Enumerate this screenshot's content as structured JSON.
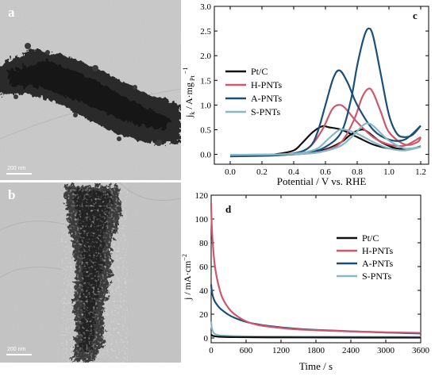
{
  "panels": {
    "a": {
      "letter": "a",
      "scale_bar": "200 nm"
    },
    "b": {
      "letter": "b",
      "scale_bar": "200 nm"
    }
  },
  "colors": {
    "pt_c": "#111111",
    "h_pnts": "#d0576b",
    "a_pnts": "#1c4f78",
    "s_pnts": "#88b8c8"
  },
  "chart_data": [
    {
      "panel": "c",
      "type": "line",
      "title": "",
      "xlabel": "Potential / V vs. RHE",
      "ylabel_main": "j",
      "ylabel_sub": "k",
      "ylabel_rest": " / A·mg",
      "ylabel_sup": "−1",
      "ylabel_supsub": "Pt",
      "xlim": [
        -0.1,
        1.25
      ],
      "ylim": [
        -0.2,
        3.0
      ],
      "xticks": [
        0.0,
        0.2,
        0.4,
        0.6,
        0.8,
        1.0,
        1.2
      ],
      "yticks": [
        0.0,
        0.5,
        1.0,
        1.5,
        2.0,
        2.5,
        3.0
      ],
      "xtick_labels": [
        "0.0",
        "0.2",
        "0.4",
        "0.6",
        "0.8",
        "1.0",
        "1.2"
      ],
      "ytick_labels": [
        "0.0",
        "0.5",
        "1.0",
        "1.5",
        "2.0",
        "2.5",
        "3.0"
      ],
      "legend_position": "middle-left",
      "series": [
        {
          "name": "Pt/C",
          "color": "#111111",
          "forward": [
            [
              0.0,
              -0.03
            ],
            [
              0.2,
              -0.02
            ],
            [
              0.4,
              0.0
            ],
            [
              0.5,
              0.03
            ],
            [
              0.6,
              0.1
            ],
            [
              0.7,
              0.25
            ],
            [
              0.75,
              0.38
            ],
            [
              0.8,
              0.48
            ],
            [
              0.84,
              0.5
            ],
            [
              0.88,
              0.42
            ],
            [
              0.95,
              0.25
            ],
            [
              1.05,
              0.12
            ],
            [
              1.15,
              0.12
            ],
            [
              1.2,
              0.16
            ]
          ],
          "backward": [
            [
              1.2,
              0.16
            ],
            [
              1.15,
              0.12
            ],
            [
              1.1,
              0.1
            ],
            [
              1.0,
              0.12
            ],
            [
              0.9,
              0.2
            ],
            [
              0.8,
              0.35
            ],
            [
              0.7,
              0.5
            ],
            [
              0.62,
              0.55
            ],
            [
              0.58,
              0.57
            ],
            [
              0.52,
              0.45
            ],
            [
              0.45,
              0.22
            ],
            [
              0.4,
              0.08
            ],
            [
              0.3,
              0.01
            ],
            [
              0.2,
              -0.02
            ],
            [
              0.0,
              -0.03
            ]
          ]
        },
        {
          "name": "H-PNTs",
          "color": "#d0576b",
          "forward": [
            [
              0.0,
              -0.02
            ],
            [
              0.3,
              -0.01
            ],
            [
              0.5,
              0.02
            ],
            [
              0.6,
              0.08
            ],
            [
              0.7,
              0.25
            ],
            [
              0.78,
              0.7
            ],
            [
              0.83,
              1.15
            ],
            [
              0.87,
              1.33
            ],
            [
              0.9,
              1.25
            ],
            [
              0.95,
              0.85
            ],
            [
              1.0,
              0.45
            ],
            [
              1.1,
              0.2
            ],
            [
              1.18,
              0.25
            ],
            [
              1.2,
              0.35
            ]
          ],
          "backward": [
            [
              1.2,
              0.35
            ],
            [
              1.1,
              0.18
            ],
            [
              1.0,
              0.2
            ],
            [
              0.9,
              0.35
            ],
            [
              0.8,
              0.65
            ],
            [
              0.72,
              0.95
            ],
            [
              0.68,
              1.0
            ],
            [
              0.64,
              0.9
            ],
            [
              0.58,
              0.5
            ],
            [
              0.5,
              0.15
            ],
            [
              0.4,
              0.02
            ],
            [
              0.2,
              -0.01
            ],
            [
              0.0,
              -0.02
            ]
          ]
        },
        {
          "name": "A-PNTs",
          "color": "#1c4f78",
          "forward": [
            [
              0.0,
              -0.04
            ],
            [
              0.3,
              -0.02
            ],
            [
              0.5,
              0.05
            ],
            [
              0.6,
              0.15
            ],
            [
              0.7,
              0.45
            ],
            [
              0.76,
              1.1
            ],
            [
              0.8,
              1.8
            ],
            [
              0.84,
              2.35
            ],
            [
              0.87,
              2.55
            ],
            [
              0.9,
              2.4
            ],
            [
              0.95,
              1.6
            ],
            [
              1.0,
              0.8
            ],
            [
              1.05,
              0.42
            ],
            [
              1.1,
              0.35
            ],
            [
              1.15,
              0.4
            ],
            [
              1.2,
              0.58
            ]
          ],
          "backward": [
            [
              1.2,
              0.58
            ],
            [
              1.1,
              0.3
            ],
            [
              1.0,
              0.3
            ],
            [
              0.9,
              0.5
            ],
            [
              0.8,
              1.0
            ],
            [
              0.74,
              1.45
            ],
            [
              0.69,
              1.7
            ],
            [
              0.65,
              1.55
            ],
            [
              0.6,
              1.0
            ],
            [
              0.55,
              0.45
            ],
            [
              0.5,
              0.15
            ],
            [
              0.4,
              0.02
            ],
            [
              0.2,
              -0.02
            ],
            [
              0.0,
              -0.04
            ]
          ]
        },
        {
          "name": "S-PNTs",
          "color": "#88b8c8",
          "forward": [
            [
              0.0,
              -0.01
            ],
            [
              0.3,
              0.0
            ],
            [
              0.5,
              0.02
            ],
            [
              0.6,
              0.07
            ],
            [
              0.7,
              0.18
            ],
            [
              0.78,
              0.4
            ],
            [
              0.84,
              0.6
            ],
            [
              0.88,
              0.62
            ],
            [
              0.92,
              0.52
            ],
            [
              1.0,
              0.28
            ],
            [
              1.1,
              0.12
            ],
            [
              1.2,
              0.15
            ]
          ],
          "backward": [
            [
              1.2,
              0.15
            ],
            [
              1.1,
              0.08
            ],
            [
              1.0,
              0.12
            ],
            [
              0.9,
              0.25
            ],
            [
              0.8,
              0.42
            ],
            [
              0.72,
              0.5
            ],
            [
              0.68,
              0.48
            ],
            [
              0.62,
              0.32
            ],
            [
              0.55,
              0.12
            ],
            [
              0.45,
              0.03
            ],
            [
              0.3,
              0.0
            ],
            [
              0.0,
              -0.01
            ]
          ]
        }
      ]
    },
    {
      "panel": "d",
      "type": "line",
      "title": "",
      "xlabel": "Time / s",
      "ylabel_main": "j / mA·cm",
      "ylabel_sup": "−2",
      "xlim": [
        0,
        3600
      ],
      "ylim": [
        -4,
        120
      ],
      "xticks": [
        0,
        600,
        1200,
        1800,
        2400,
        3000,
        3600
      ],
      "yticks": [
        0,
        20,
        40,
        60,
        80,
        100,
        120
      ],
      "xtick_labels": [
        "0",
        "600",
        "1200",
        "1800",
        "2400",
        "3000",
        "3600"
      ],
      "ytick_labels": [
        "0",
        "20",
        "40",
        "60",
        "80",
        "100",
        "120"
      ],
      "legend_position": "top-right",
      "series": [
        {
          "name": "Pt/C",
          "color": "#111111",
          "x": [
            0,
            20,
            60,
            150,
            400,
            1000,
            2000,
            3600
          ],
          "y": [
            3,
            2,
            1.5,
            1,
            0.7,
            0.5,
            0.4,
            0.3
          ]
        },
        {
          "name": "H-PNTs",
          "color": "#d0576b",
          "x": [
            0,
            10,
            30,
            60,
            100,
            150,
            200,
            300,
            400,
            600,
            800,
            1000,
            1400,
            1800,
            2400,
            3000,
            3600
          ],
          "y": [
            113,
            95,
            78,
            62,
            50,
            40,
            33,
            25,
            20,
            14,
            11,
            9.5,
            7.5,
            6.5,
            5.5,
            4.8,
            4.3
          ]
        },
        {
          "name": "A-PNTs",
          "color": "#1c4f78",
          "x": [
            0,
            10,
            30,
            60,
            100,
            150,
            200,
            300,
            400,
            600,
            800,
            1000,
            1400,
            1800,
            2400,
            3000,
            3600
          ],
          "y": [
            45,
            40,
            35,
            31,
            28,
            25,
            23,
            19.5,
            17,
            13.5,
            11.5,
            10,
            8,
            6.8,
            5.6,
            4.6,
            3.8
          ]
        },
        {
          "name": "S-PNTs",
          "color": "#88b8c8",
          "x": [
            0,
            10,
            25,
            50,
            80,
            120,
            200,
            400,
            800,
            1600,
            2400,
            3600
          ],
          "y": [
            14,
            9,
            6,
            4,
            3,
            2.5,
            2,
            1.6,
            1.3,
            1.1,
            1,
            0.9
          ]
        }
      ]
    }
  ]
}
